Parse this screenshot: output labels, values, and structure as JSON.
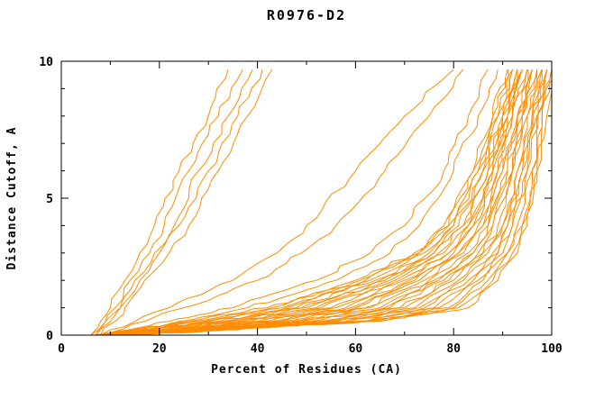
{
  "chart_data": {
    "type": "line",
    "title": "R0976-D2",
    "xlabel": "Percent of Residues (CA)",
    "ylabel": "Distance Cutoff, A",
    "xlim": [
      0,
      100
    ],
    "ylim": [
      0,
      10
    ],
    "grid": false,
    "legend": "none",
    "line_color": "#ff8c00",
    "axis_color": "#000000",
    "background": "#ffffff",
    "x_major_ticks": [
      0,
      20,
      40,
      60,
      80,
      100
    ],
    "x_tick_labels": [
      "0",
      "20",
      "40",
      "60",
      "80",
      "100"
    ],
    "x_minor_ticks": [
      10,
      30,
      50,
      70,
      90
    ],
    "y_major_ticks": [
      0,
      5,
      10
    ],
    "y_tick_labels": [
      "0",
      "5",
      "10"
    ],
    "y_minor_ticks": [
      1,
      2,
      3,
      4,
      6,
      7,
      8,
      9
    ],
    "y_anchors": [
      0,
      0.5,
      1,
      2,
      3,
      4,
      6,
      8,
      9.7
    ],
    "curves": [
      [
        6,
        8,
        10,
        13,
        16,
        19,
        24,
        30,
        34
      ],
      [
        6,
        9,
        11,
        14,
        18,
        21,
        26,
        32,
        37
      ],
      [
        7,
        9,
        12,
        15,
        19,
        23,
        28,
        34,
        39
      ],
      [
        7,
        10,
        12,
        16,
        20,
        24,
        30,
        36,
        41
      ],
      [
        8,
        11,
        13,
        17,
        22,
        26,
        32,
        38,
        43
      ],
      [
        8,
        15,
        22,
        35,
        44,
        50,
        60,
        70,
        80
      ],
      [
        9,
        17,
        25,
        40,
        49,
        56,
        66,
        75,
        82
      ],
      [
        8,
        22,
        35,
        52,
        63,
        70,
        78,
        83,
        87
      ],
      [
        8,
        24,
        38,
        56,
        67,
        73,
        80,
        85,
        89
      ],
      [
        7,
        26,
        42,
        60,
        72,
        78,
        84,
        88,
        91
      ],
      [
        7,
        27,
        43,
        61,
        73,
        79,
        84,
        88,
        91
      ],
      [
        8,
        29,
        45,
        62,
        73,
        79,
        85,
        89,
        92
      ],
      [
        8,
        30,
        46,
        63,
        74,
        80,
        85,
        89,
        92
      ],
      [
        8,
        32,
        48,
        64,
        75,
        80,
        86,
        90,
        92
      ],
      [
        8,
        33,
        49,
        65,
        76,
        81,
        86,
        90,
        93
      ],
      [
        8,
        34,
        50,
        66,
        76,
        82,
        87,
        90,
        93
      ],
      [
        9,
        36,
        52,
        67,
        77,
        82,
        87,
        91,
        93
      ],
      [
        9,
        37,
        53,
        68,
        78,
        83,
        88,
        91,
        94
      ],
      [
        9,
        38,
        55,
        69,
        79,
        83,
        88,
        91,
        94
      ],
      [
        9,
        40,
        56,
        70,
        79,
        84,
        88,
        92,
        94
      ],
      [
        9,
        41,
        58,
        71,
        80,
        84,
        89,
        92,
        95
      ],
      [
        10,
        43,
        59,
        72,
        81,
        85,
        89,
        92,
        95
      ],
      [
        10,
        44,
        60,
        73,
        81,
        86,
        90,
        93,
        95
      ],
      [
        10,
        45,
        62,
        74,
        82,
        86,
        90,
        93,
        96
      ],
      [
        10,
        47,
        63,
        75,
        83,
        87,
        91,
        93,
        96
      ],
      [
        10,
        48,
        65,
        76,
        84,
        87,
        91,
        94,
        96
      ],
      [
        11,
        49,
        66,
        77,
        84,
        88,
        92,
        94,
        97
      ],
      [
        11,
        51,
        67,
        78,
        85,
        88,
        92,
        94,
        97
      ],
      [
        11,
        52,
        69,
        79,
        86,
        89,
        92,
        95,
        97
      ],
      [
        11,
        54,
        70,
        80,
        86,
        90,
        93,
        95,
        98
      ],
      [
        11,
        55,
        72,
        81,
        87,
        90,
        93,
        96,
        98
      ],
      [
        12,
        56,
        73,
        82,
        88,
        91,
        94,
        96,
        98
      ],
      [
        12,
        58,
        74,
        83,
        89,
        91,
        94,
        96,
        99
      ],
      [
        12,
        59,
        76,
        84,
        89,
        92,
        95,
        97,
        99
      ],
      [
        12,
        60,
        77,
        85,
        90,
        92,
        95,
        97,
        99
      ],
      [
        13,
        62,
        79,
        86,
        91,
        93,
        96,
        97,
        100
      ],
      [
        13,
        63,
        80,
        87,
        91,
        94,
        96,
        98,
        100
      ],
      [
        13,
        64,
        81,
        88,
        92,
        94,
        97,
        98,
        100
      ],
      [
        13,
        65,
        83,
        89,
        93,
        95,
        97,
        99,
        100
      ]
    ]
  }
}
